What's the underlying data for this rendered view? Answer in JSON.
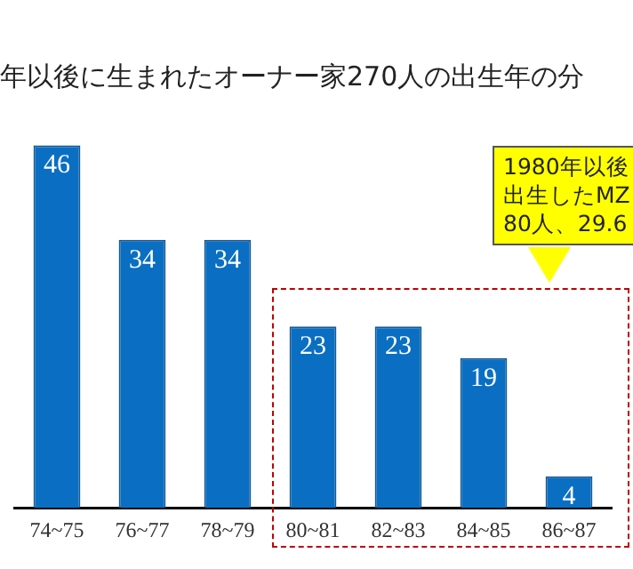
{
  "chart_data": {
    "type": "bar",
    "title": "年以後に生まれたオーナー家270人の出生年の分",
    "categories": [
      "74~75",
      "76~77",
      "78~79",
      "80~81",
      "82~83",
      "84~85",
      "86~87"
    ],
    "values": [
      46,
      34,
      34,
      23,
      23,
      19,
      4
    ],
    "color": "#0a6fc2",
    "tick_labels": "x",
    "grid": false,
    "legend": false,
    "data_labels": true,
    "annotations": [
      "1980年以後出生したMZ80人、29.6"
    ]
  }
}
